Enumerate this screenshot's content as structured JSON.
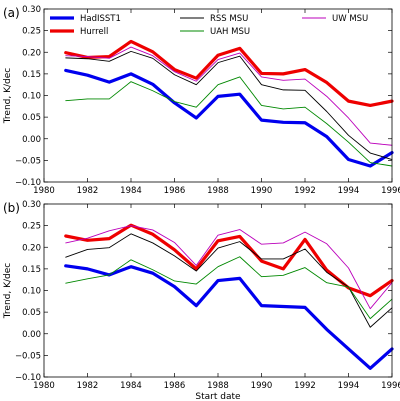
{
  "chart_data": [
    {
      "type": "line",
      "panel_label": "(a)",
      "xlabel": "",
      "ylabel": "Trend, K/dec",
      "xlim": [
        1980,
        1996
      ],
      "ylim": [
        -0.1,
        0.3
      ],
      "xticks": [
        "1980",
        "1982",
        "1984",
        "1986",
        "1988",
        "1990",
        "1992",
        "1994",
        "1996"
      ],
      "yticks": [
        "−0.10",
        "−0.05",
        "0.00",
        "0.05",
        "0.10",
        "0.15",
        "0.20",
        "0.25",
        "0.30"
      ],
      "grid": false,
      "legend": "top, three columns",
      "x": [
        1981,
        1982,
        1983,
        1984,
        1985,
        1986,
        1987,
        1988,
        1989,
        1990,
        1991,
        1992,
        1993,
        1994,
        1995,
        1996
      ],
      "series": [
        {
          "name": "HadISST1",
          "color": "#0000ee",
          "width": 3.2,
          "values": [
            0.158,
            0.147,
            0.131,
            0.15,
            0.126,
            0.083,
            0.048,
            0.098,
            0.103,
            0.043,
            0.038,
            0.037,
            0.005,
            -0.048,
            -0.063,
            -0.032
          ]
        },
        {
          "name": "Hurrell",
          "color": "#ee0000",
          "width": 3.2,
          "values": [
            0.199,
            0.188,
            0.19,
            0.225,
            0.201,
            0.16,
            0.14,
            0.193,
            0.209,
            0.151,
            0.15,
            0.16,
            0.13,
            0.087,
            0.077,
            0.087
          ]
        },
        {
          "name": "RSS MSU",
          "color": "#000000",
          "width": 0.9,
          "values": [
            0.187,
            0.185,
            0.179,
            0.202,
            0.186,
            0.148,
            0.125,
            0.176,
            0.191,
            0.125,
            0.113,
            0.112,
            0.063,
            0.008,
            -0.033,
            -0.048
          ]
        },
        {
          "name": "UAH MSU",
          "color": "#008800",
          "width": 0.9,
          "values": [
            0.088,
            0.092,
            0.092,
            0.132,
            0.111,
            0.086,
            0.073,
            0.125,
            0.143,
            0.077,
            0.069,
            0.073,
            0.035,
            -0.008,
            -0.055,
            -0.063
          ]
        },
        {
          "name": "UW MSU",
          "color": "#bb00bb",
          "width": 0.9,
          "values": [
            0.192,
            0.19,
            0.186,
            0.212,
            0.192,
            0.155,
            0.133,
            0.183,
            0.198,
            0.143,
            0.135,
            0.138,
            0.098,
            0.048,
            -0.01,
            -0.015
          ]
        }
      ]
    },
    {
      "type": "line",
      "panel_label": "(b)",
      "xlabel": "Start date",
      "ylabel": "Trend, K/dec",
      "xlim": [
        1980,
        1996
      ],
      "ylim": [
        -0.1,
        0.3
      ],
      "xticks": [
        "1980",
        "1982",
        "1984",
        "1986",
        "1988",
        "1990",
        "1992",
        "1994",
        "1996"
      ],
      "yticks": [
        "−0.10",
        "−0.05",
        "0.00",
        "0.05",
        "0.10",
        "0.15",
        "0.20",
        "0.25",
        "0.30"
      ],
      "grid": false,
      "legend": "none",
      "x": [
        1981,
        1982,
        1983,
        1984,
        1985,
        1986,
        1987,
        1988,
        1989,
        1990,
        1991,
        1992,
        1993,
        1994,
        1995,
        1996
      ],
      "series": [
        {
          "name": "HadISST1",
          "color": "#0000ee",
          "width": 3.2,
          "values": [
            0.157,
            0.15,
            0.136,
            0.155,
            0.14,
            0.109,
            0.065,
            0.123,
            0.128,
            0.065,
            0.063,
            0.061,
            0.01,
            -0.035,
            -0.08,
            -0.035
          ]
        },
        {
          "name": "Hurrell",
          "color": "#ee0000",
          "width": 3.2,
          "values": [
            0.226,
            0.216,
            0.22,
            0.251,
            0.23,
            0.194,
            0.15,
            0.215,
            0.225,
            0.168,
            0.15,
            0.218,
            0.147,
            0.106,
            0.088,
            0.123
          ]
        },
        {
          "name": "RSS MSU",
          "color": "#000000",
          "width": 0.9,
          "values": [
            0.177,
            0.195,
            0.199,
            0.231,
            0.21,
            0.18,
            0.145,
            0.198,
            0.213,
            0.173,
            0.173,
            0.196,
            0.142,
            0.108,
            0.015,
            0.06
          ]
        },
        {
          "name": "UAH MSU",
          "color": "#008800",
          "width": 0.9,
          "values": [
            0.117,
            0.127,
            0.136,
            0.171,
            0.148,
            0.122,
            0.115,
            0.155,
            0.178,
            0.132,
            0.135,
            0.153,
            0.118,
            0.108,
            0.035,
            0.08
          ]
        },
        {
          "name": "UW MSU",
          "color": "#bb00bb",
          "width": 0.9,
          "values": [
            0.21,
            0.221,
            0.238,
            0.25,
            0.24,
            0.211,
            0.158,
            0.228,
            0.241,
            0.207,
            0.21,
            0.235,
            0.208,
            0.152,
            0.058,
            0.118
          ]
        }
      ]
    }
  ]
}
